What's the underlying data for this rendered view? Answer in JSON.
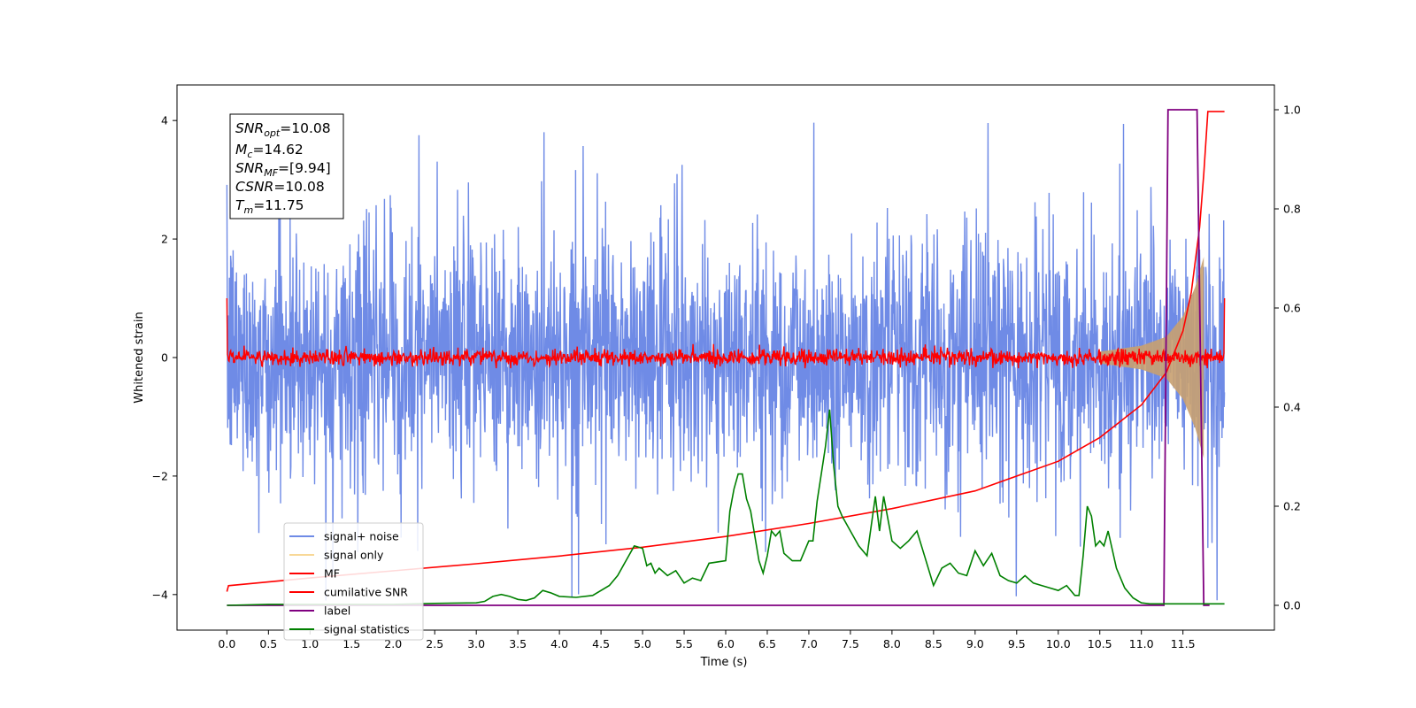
{
  "chart_data": {
    "type": "line",
    "xlabel": "Time (s)",
    "ylabel": "Whitened strain",
    "xlim": [
      -0.6,
      12.6
    ],
    "ylim": [
      -4.6,
      4.6
    ],
    "ylim_right": [
      -0.05,
      1.05
    ],
    "x_ticks": [
      "0.0",
      "0.5",
      "1.0",
      "1.5",
      "2.0",
      "2.5",
      "3.0",
      "3.5",
      "4.0",
      "4.5",
      "5.0",
      "5.5",
      "6.0",
      "6.5",
      "7.0",
      "7.5",
      "8.0",
      "8.5",
      "9.0",
      "9.5",
      "10.0",
      "10.5",
      "11.0",
      "11.5"
    ],
    "y_ticks_left": [
      "4",
      "2",
      "0",
      "−2",
      "−4"
    ],
    "y_ticks_right": [
      "1.0",
      "0.8",
      "0.6",
      "0.4",
      "0.2",
      "0.0"
    ],
    "grid": false,
    "legend_position": "lower-left",
    "annotation": {
      "snr_opt": "=10.08",
      "mc": "=14.62",
      "snr_mf": "=[9.94]",
      "csnr": "=10.08",
      "tm": "=11.75"
    },
    "colors": {
      "signal_noise": "#6f8be6",
      "signal_only": "#f5c76b",
      "signal_fill": "#c8a070",
      "mf": "#ff0000",
      "cumulative": "#ff0000",
      "label": "#800080",
      "statistics": "#008000"
    },
    "series": [
      {
        "name": "signal+ noise",
        "axis": "left",
        "description": "whitened strain noise band approx. between -2.6 and +2.6 with spikes to +4.1 and -4.1",
        "x_range": [
          0.0,
          12.0
        ]
      },
      {
        "name": "signal only",
        "axis": "left",
        "envelope": {
          "x": [
            10.5,
            11.0,
            11.3,
            11.5,
            11.65,
            11.75
          ],
          "amp": [
            0.1,
            0.2,
            0.35,
            0.7,
            1.2,
            1.7
          ]
        }
      },
      {
        "name": "MF",
        "axis": "left",
        "description": "noise around 0 with amplitude ~0.15; endpoints at 1.0",
        "x_range": [
          0.0,
          12.0
        ]
      },
      {
        "name": "cumilative SNR",
        "axis": "left",
        "x": [
          0.0,
          0.02,
          1.0,
          2.0,
          3.0,
          4.0,
          5.0,
          6.0,
          7.0,
          8.0,
          9.0,
          10.0,
          10.5,
          11.0,
          11.3,
          11.5,
          11.6,
          11.7,
          11.75,
          11.8,
          12.0
        ],
        "y": [
          -3.95,
          -3.85,
          -3.72,
          -3.6,
          -3.48,
          -3.35,
          -3.2,
          -3.02,
          -2.8,
          -2.55,
          -2.25,
          -1.75,
          -1.35,
          -0.8,
          -0.25,
          0.45,
          1.1,
          2.2,
          3.1,
          4.15,
          4.15
        ]
      },
      {
        "name": "label",
        "axis": "right",
        "x": [
          0.0,
          11.27,
          11.32,
          11.67,
          11.75,
          11.82
        ],
        "y": [
          0.0,
          0.0,
          1.0,
          1.0,
          0.0,
          0.0
        ]
      },
      {
        "name": "signal statistics",
        "axis": "right",
        "x": [
          0.0,
          0.5,
          1.0,
          1.5,
          2.0,
          2.5,
          3.0,
          3.1,
          3.2,
          3.3,
          3.4,
          3.5,
          3.6,
          3.7,
          3.8,
          3.9,
          4.0,
          4.2,
          4.4,
          4.6,
          4.7,
          4.8,
          4.9,
          5.0,
          5.05,
          5.1,
          5.15,
          5.2,
          5.3,
          5.4,
          5.5,
          5.6,
          5.7,
          5.8,
          6.0,
          6.05,
          6.1,
          6.15,
          6.2,
          6.25,
          6.3,
          6.4,
          6.45,
          6.5,
          6.55,
          6.6,
          6.65,
          6.7,
          6.8,
          6.9,
          7.0,
          7.05,
          7.1,
          7.2,
          7.25,
          7.3,
          7.35,
          7.4,
          7.5,
          7.6,
          7.7,
          7.8,
          7.85,
          7.9,
          8.0,
          8.1,
          8.2,
          8.3,
          8.4,
          8.5,
          8.6,
          8.7,
          8.8,
          8.9,
          9.0,
          9.1,
          9.2,
          9.3,
          9.4,
          9.5,
          9.6,
          9.7,
          9.8,
          9.9,
          10.0,
          10.1,
          10.2,
          10.25,
          10.3,
          10.35,
          10.4,
          10.45,
          10.5,
          10.55,
          10.6,
          10.7,
          10.8,
          10.9,
          11.0,
          11.1,
          11.2,
          11.3,
          11.4,
          11.5,
          11.6,
          11.7,
          11.8,
          11.9,
          12.0
        ],
        "y": [
          0.0,
          0.002,
          0.002,
          0.002,
          0.002,
          0.004,
          0.005,
          0.008,
          0.018,
          0.022,
          0.018,
          0.012,
          0.01,
          0.015,
          0.03,
          0.025,
          0.018,
          0.016,
          0.02,
          0.04,
          0.06,
          0.09,
          0.12,
          0.115,
          0.08,
          0.085,
          0.065,
          0.075,
          0.06,
          0.07,
          0.045,
          0.055,
          0.05,
          0.085,
          0.09,
          0.19,
          0.235,
          0.265,
          0.265,
          0.215,
          0.19,
          0.09,
          0.065,
          0.1,
          0.15,
          0.14,
          0.15,
          0.105,
          0.09,
          0.09,
          0.13,
          0.13,
          0.21,
          0.32,
          0.395,
          0.28,
          0.2,
          0.18,
          0.15,
          0.12,
          0.1,
          0.22,
          0.15,
          0.22,
          0.13,
          0.115,
          0.13,
          0.15,
          0.095,
          0.04,
          0.075,
          0.085,
          0.065,
          0.06,
          0.11,
          0.08,
          0.105,
          0.06,
          0.05,
          0.045,
          0.06,
          0.045,
          0.04,
          0.035,
          0.03,
          0.04,
          0.02,
          0.02,
          0.1,
          0.2,
          0.18,
          0.12,
          0.13,
          0.12,
          0.15,
          0.075,
          0.035,
          0.015,
          0.005,
          0.003,
          0.003,
          0.003,
          0.003,
          0.003,
          0.003,
          0.003,
          0.003,
          0.003,
          0.003
        ]
      }
    ]
  }
}
